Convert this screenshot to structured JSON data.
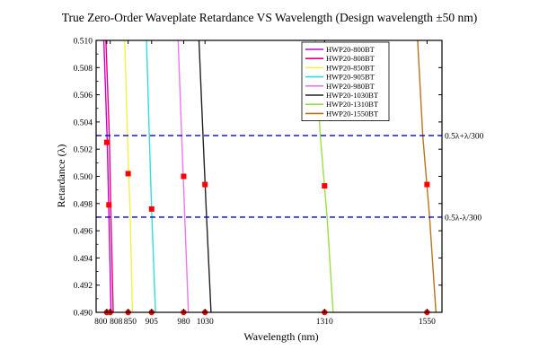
{
  "chart_data": {
    "type": "line",
    "title": "True Zero-Order Waveplate Retardance VS Wavelength (Design wavelength ±50 nm)",
    "xlabel": "Wavelength (nm)",
    "ylabel": "Retardance (λ)",
    "xlim": [
      775,
      1585
    ],
    "ylim": [
      0.49,
      0.51
    ],
    "x_ticks": [
      {
        "value": 800,
        "label": "800"
      },
      {
        "value": 808,
        "label": "808"
      },
      {
        "value": 850,
        "label": "850"
      },
      {
        "value": 905,
        "label": "905"
      },
      {
        "value": 980,
        "label": "980"
      },
      {
        "value": 1030,
        "label": "1030"
      },
      {
        "value": 1310,
        "label": "1310"
      },
      {
        "value": 1550,
        "label": "1550"
      }
    ],
    "y_ticks": [
      "0.490",
      "0.492",
      "0.494",
      "0.496",
      "0.498",
      "0.500",
      "0.502",
      "0.504",
      "0.506",
      "0.508",
      "0.510"
    ],
    "grid": false,
    "legend_position": "top-right",
    "series": [
      {
        "name": "HWP20-800BT",
        "color": "#cc00cc",
        "points": [
          [
            793,
            0.51
          ],
          [
            801,
            0.5025
          ],
          [
            804,
            0.4985
          ],
          [
            810,
            0.49
          ]
        ]
      },
      {
        "name": "HWP20-808BT",
        "color": "#e8007a",
        "points": [
          [
            798,
            0.51
          ],
          [
            806,
            0.503
          ],
          [
            809,
            0.498
          ],
          [
            815,
            0.49
          ]
        ]
      },
      {
        "name": "HWP20-850BT",
        "color": "#f2f24a",
        "points": [
          [
            842,
            0.51
          ],
          [
            850,
            0.5015
          ],
          [
            855,
            0.497
          ],
          [
            860,
            0.49
          ]
        ]
      },
      {
        "name": "HWP20-905BT",
        "color": "#33dddd",
        "points": [
          [
            893,
            0.51
          ],
          [
            900,
            0.5025
          ],
          [
            905,
            0.4975
          ],
          [
            914,
            0.49
          ]
        ]
      },
      {
        "name": "HWP20-980BT",
        "color": "#ee77ee",
        "points": [
          [
            967,
            0.51
          ],
          [
            976,
            0.5025
          ],
          [
            982,
            0.4975
          ],
          [
            991,
            0.49
          ]
        ]
      },
      {
        "name": "HWP20-1030BT",
        "color": "#222222",
        "points": [
          [
            1016,
            0.51
          ],
          [
            1026,
            0.5025
          ],
          [
            1033,
            0.4975
          ],
          [
            1044,
            0.49
          ]
        ]
      },
      {
        "name": "HWP20-1310BT",
        "color": "#99e040",
        "points": [
          [
            1288,
            0.51
          ],
          [
            1300,
            0.503
          ],
          [
            1316,
            0.497
          ],
          [
            1330,
            0.49
          ]
        ]
      },
      {
        "name": "HWP20-1550BT",
        "color": "#b8741a",
        "points": [
          [
            1528,
            0.51
          ],
          [
            1540,
            0.503
          ],
          [
            1556,
            0.497
          ],
          [
            1571,
            0.49
          ]
        ]
      }
    ],
    "marker_series": {
      "color": "#ff0000",
      "points": [
        [
          800,
          0.5025
        ],
        [
          805,
          0.4979
        ],
        [
          850,
          0.5002
        ],
        [
          905,
          0.4976
        ],
        [
          980,
          0.5
        ],
        [
          1030,
          0.4994
        ],
        [
          1310,
          0.4993
        ],
        [
          1550,
          0.4994
        ],
        [
          800,
          0.49
        ],
        [
          808,
          0.49
        ],
        [
          850,
          0.49
        ],
        [
          905,
          0.49
        ],
        [
          980,
          0.49
        ],
        [
          1030,
          0.49
        ],
        [
          1310,
          0.49
        ],
        [
          1550,
          0.49
        ]
      ]
    },
    "reference_lines": [
      {
        "y": 0.503,
        "label": "0.5λ+λ/300",
        "color": "#0000dd",
        "style": "dashed"
      },
      {
        "y": 0.497,
        "label": "0.5λ-λ/300",
        "color": "#0000dd",
        "style": "dashed"
      }
    ]
  }
}
